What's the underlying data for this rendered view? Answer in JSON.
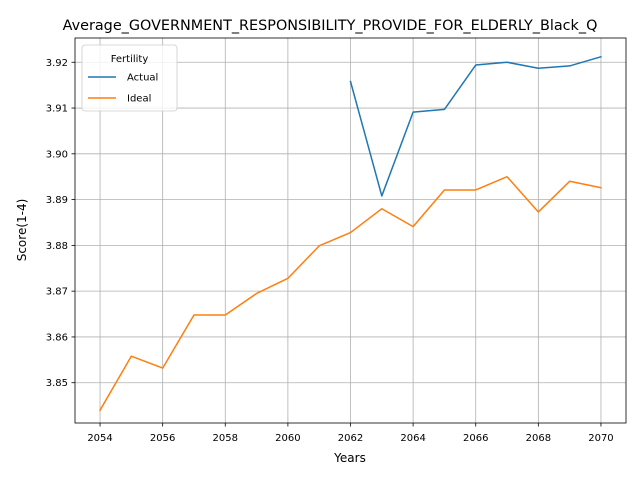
{
  "chart_data": {
    "type": "line",
    "title": "Average_GOVERNMENT_RESPONSIBILITY_PROVIDE_FOR_ELDERLY_Black_Q",
    "xlabel": "Years",
    "ylabel": "Score(1-4)",
    "xlim": [
      2053.2,
      2070.8
    ],
    "ylim": [
      3.8412,
      3.9253
    ],
    "xticks": [
      2054,
      2056,
      2058,
      2060,
      2062,
      2064,
      2066,
      2068,
      2070
    ],
    "yticks": [
      3.85,
      3.86,
      3.87,
      3.88,
      3.89,
      3.9,
      3.91,
      3.92
    ],
    "ytick_labels": [
      "3.85",
      "3.86",
      "3.87",
      "3.88",
      "3.89",
      "3.90",
      "3.91",
      "3.92"
    ],
    "grid": true,
    "legend": {
      "title": "Fertility",
      "position": "top-left"
    },
    "series": [
      {
        "name": "Actual",
        "color": "#1f77b4",
        "x": [
          2062,
          2063,
          2064,
          2065,
          2066,
          2067,
          2068,
          2069,
          2070
        ],
        "y": [
          3.9158,
          3.8908,
          3.9091,
          3.9097,
          3.9194,
          3.92,
          3.9187,
          3.9192,
          3.9212
        ]
      },
      {
        "name": "Ideal",
        "color": "#ff7f0e",
        "x": [
          2054,
          2055,
          2056,
          2057,
          2058,
          2059,
          2060,
          2061,
          2062,
          2063,
          2064,
          2065,
          2066,
          2067,
          2068,
          2069,
          2070
        ],
        "y": [
          3.844,
          3.8558,
          3.8532,
          3.8648,
          3.8648,
          3.8695,
          3.8728,
          3.8799,
          3.8828,
          3.888,
          3.8841,
          3.8921,
          3.8921,
          3.895,
          3.8873,
          3.894,
          3.8926
        ]
      }
    ]
  }
}
